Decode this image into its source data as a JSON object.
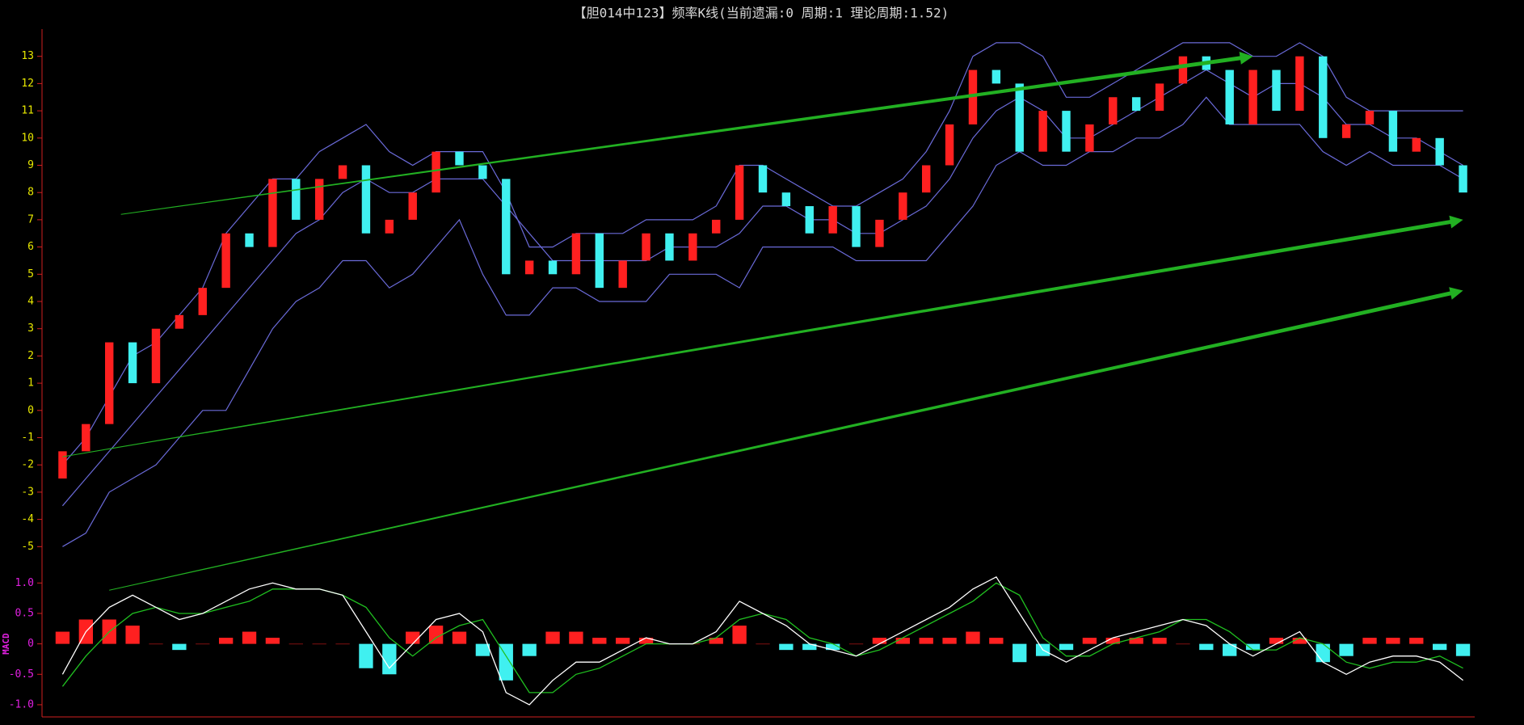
{
  "chart_data": [
    {
      "type": "candlestick",
      "title": "【胆014中123】频率K线(当前遗漏:0 周期:1 理论周期:1.52)",
      "open": [
        -2.5,
        -1.5,
        -0.5,
        2.5,
        1,
        3,
        3.5,
        4.5,
        6.5,
        6,
        8.5,
        7,
        8.5,
        9,
        6.5,
        7,
        8,
        9.5,
        9,
        8.5,
        5,
        5.5,
        5,
        6.5,
        4.5,
        5.5,
        6.5,
        5.5,
        6.5,
        7,
        9,
        8,
        7.5,
        6.5,
        7.5,
        6,
        7,
        8,
        9,
        10.5,
        12.5,
        12,
        9.5,
        11,
        9.5,
        10.5,
        11.5,
        11,
        12,
        13,
        12.5,
        10.5,
        12.5,
        11,
        13,
        10,
        10.5,
        11,
        9.5,
        10,
        9
      ],
      "close": [
        -1.5,
        -0.5,
        2.5,
        1,
        3,
        3.5,
        4.5,
        6.5,
        6,
        8.5,
        7,
        8.5,
        9,
        6.5,
        7,
        8,
        9.5,
        9,
        8.5,
        5,
        5.5,
        5,
        6.5,
        4.5,
        5.5,
        6.5,
        5.5,
        6.5,
        7,
        9,
        8,
        7.5,
        6.5,
        7.5,
        6,
        7,
        8,
        9,
        10.5,
        12.5,
        12,
        9.5,
        11,
        9.5,
        10.5,
        11.5,
        11,
        12,
        13,
        12.5,
        10.5,
        12.5,
        11,
        13,
        10,
        10.5,
        11,
        9.5,
        10,
        9,
        8
      ],
      "up_color": "#ff2020",
      "down_color": "#40f0f0",
      "bands": {
        "color": "#6a6ad8",
        "upper": [
          -2,
          -1,
          0.5,
          2,
          2.5,
          3.5,
          4.5,
          6.5,
          7.5,
          8.5,
          8.5,
          9.5,
          10,
          10.5,
          9.5,
          9,
          9.5,
          9.5,
          9.5,
          8,
          6,
          6,
          6.5,
          6.5,
          6.5,
          7,
          7,
          7,
          7.5,
          9,
          9,
          8.5,
          8,
          7.5,
          7.5,
          8,
          8.5,
          9.5,
          11,
          13,
          13.5,
          13.5,
          13,
          11.5,
          11.5,
          12,
          12.5,
          13,
          13.5,
          13.5,
          13.5,
          13,
          13,
          13.5,
          13,
          11.5,
          11,
          11,
          11,
          11,
          11
        ],
        "middle": [
          -3.5,
          -2.5,
          -1.5,
          -0.5,
          0.5,
          1.5,
          2.5,
          3.5,
          4.5,
          5.5,
          6.5,
          7,
          8,
          8.5,
          8,
          8,
          8.5,
          8.5,
          8.5,
          7.5,
          6.5,
          5.5,
          5.5,
          5.5,
          5.5,
          5.5,
          6,
          6,
          6,
          6.5,
          7.5,
          7.5,
          7,
          7,
          6.5,
          6.5,
          7,
          7.5,
          8.5,
          10,
          11,
          11.5,
          11,
          10,
          10,
          10.5,
          11,
          11.5,
          12,
          12.5,
          12,
          11.5,
          12,
          12,
          11.5,
          10.5,
          10.5,
          10,
          10,
          9.5,
          9
        ],
        "lower": [
          -5,
          -4.5,
          -3,
          -2.5,
          -2,
          -1,
          0,
          0,
          1.5,
          3,
          4,
          4.5,
          5.5,
          5.5,
          4.5,
          5,
          6,
          7,
          5,
          3.5,
          3.5,
          4.5,
          4.5,
          4,
          4,
          4,
          5,
          5,
          5,
          4.5,
          6,
          6,
          6,
          6,
          5.5,
          5.5,
          5.5,
          5.5,
          6.5,
          7.5,
          9,
          9.5,
          9,
          9,
          9.5,
          9.5,
          10,
          10,
          10.5,
          11.5,
          10.5,
          10.5,
          10.5,
          10.5,
          9.5,
          9,
          9.5,
          9,
          9,
          9,
          8.5
        ]
      },
      "arrows": [
        {
          "x": [
            2.5,
            51
          ],
          "y": [
            7.2,
            13
          ]
        },
        {
          "x": [
            0,
            60
          ],
          "y": [
            -1.7,
            7
          ]
        },
        {
          "x": [
            2,
            60
          ],
          "y": [
            -6.6,
            4.4
          ]
        }
      ],
      "arrow_color": "#22b022",
      "tick_color": "#e8e800",
      "ylim": [
        -6,
        14
      ],
      "yticks": [
        -5,
        -4,
        -3,
        -2,
        -1,
        0,
        1,
        2,
        3,
        4,
        5,
        6,
        7,
        8,
        9,
        10,
        11,
        12,
        13
      ]
    },
    {
      "type": "macd",
      "label": "MACD",
      "dif": {
        "color": "#ffffff",
        "values": [
          -0.5,
          0.2,
          0.6,
          0.8,
          0.6,
          0.4,
          0.5,
          0.7,
          0.9,
          1.0,
          0.9,
          0.9,
          0.8,
          0.2,
          -0.4,
          0.0,
          0.4,
          0.5,
          0.2,
          -0.8,
          -1.0,
          -0.6,
          -0.3,
          -0.3,
          -0.1,
          0.1,
          0.0,
          0.0,
          0.2,
          0.7,
          0.5,
          0.3,
          0.0,
          -0.1,
          -0.2,
          0.0,
          0.2,
          0.4,
          0.6,
          0.9,
          1.1,
          0.5,
          -0.1,
          -0.3,
          -0.1,
          0.1,
          0.2,
          0.3,
          0.4,
          0.3,
          0.0,
          -0.2,
          0.0,
          0.2,
          -0.3,
          -0.5,
          -0.3,
          -0.2,
          -0.2,
          -0.3,
          -0.6
        ]
      },
      "dea": {
        "color": "#20c020",
        "values": [
          -0.7,
          -0.2,
          0.2,
          0.5,
          0.6,
          0.5,
          0.5,
          0.6,
          0.7,
          0.9,
          0.9,
          0.9,
          0.8,
          0.6,
          0.1,
          -0.2,
          0.1,
          0.3,
          0.4,
          -0.2,
          -0.8,
          -0.8,
          -0.5,
          -0.4,
          -0.2,
          0.0,
          0.0,
          0.0,
          0.1,
          0.4,
          0.5,
          0.4,
          0.1,
          0.0,
          -0.2,
          -0.1,
          0.1,
          0.3,
          0.5,
          0.7,
          1.0,
          0.8,
          0.1,
          -0.2,
          -0.2,
          0.0,
          0.1,
          0.2,
          0.4,
          0.4,
          0.2,
          -0.1,
          -0.1,
          0.1,
          0.0,
          -0.3,
          -0.4,
          -0.3,
          -0.3,
          -0.2,
          -0.4
        ]
      },
      "hist": [
        0.2,
        0.4,
        0.4,
        0.3,
        0.0,
        -0.1,
        0.0,
        0.1,
        0.2,
        0.1,
        0.0,
        0.0,
        0.0,
        -0.4,
        -0.5,
        0.2,
        0.3,
        0.2,
        -0.2,
        -0.6,
        -0.2,
        0.2,
        0.2,
        0.1,
        0.1,
        0.1,
        0.0,
        0.0,
        0.1,
        0.3,
        0.0,
        -0.1,
        -0.1,
        -0.1,
        0.0,
        0.1,
        0.1,
        0.1,
        0.1,
        0.2,
        0.1,
        -0.3,
        -0.2,
        -0.1,
        0.1,
        0.1,
        0.1,
        0.1,
        0.0,
        -0.1,
        -0.2,
        -0.1,
        0.1,
        0.1,
        -0.3,
        -0.2,
        0.1,
        0.1,
        0.1,
        -0.1,
        -0.2
      ],
      "up_color": "#ff2020",
      "down_color": "#40f0f0",
      "tick_color": "#e020e0",
      "ylim": [
        -1.2,
        1.15
      ],
      "yticks": [
        {
          "value": 1,
          "label": "1.0"
        },
        0.5,
        0,
        -0.5,
        {
          "value": -1,
          "label": "-1.0"
        }
      ]
    }
  ]
}
